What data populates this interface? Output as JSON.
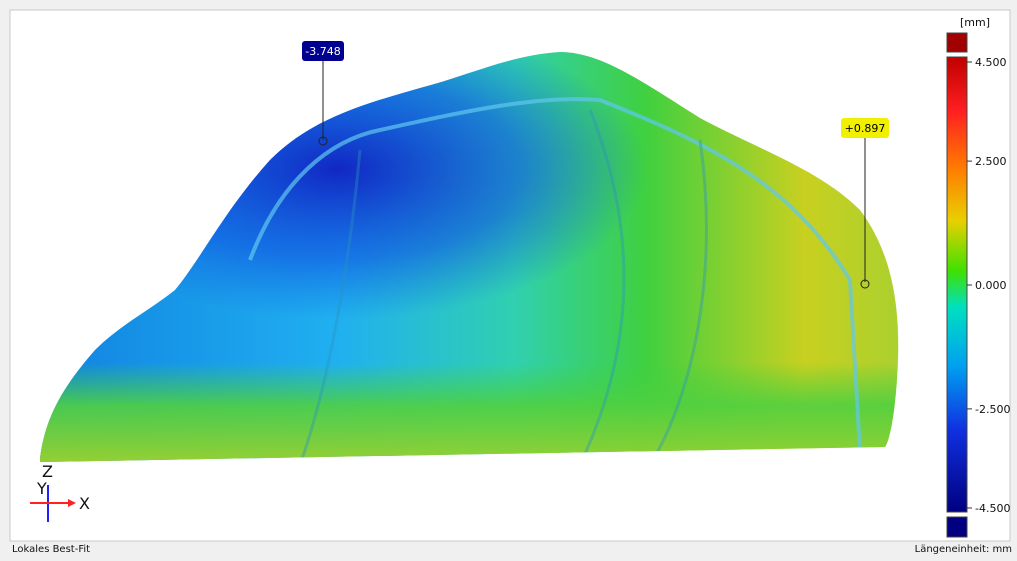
{
  "viewport": {
    "colorbar": {
      "unit": "[mm]",
      "ticks": [
        {
          "value": 4.5,
          "label": "4.500"
        },
        {
          "value": 2.5,
          "label": "2.500"
        },
        {
          "value": 0,
          "label": "0.000"
        },
        {
          "value": -2.5,
          "label": "-2.500"
        },
        {
          "value": -4.5,
          "label": "-4.500"
        }
      ]
    },
    "annotations": [
      {
        "value": -3.748,
        "label": "-3.748"
      },
      {
        "value": 0.897,
        "label": "+0.897"
      }
    ],
    "axes": {
      "z": "Z",
      "y": "Y",
      "x": "X"
    }
  },
  "status_bar": {
    "left": "Lokales Best-Fit",
    "right": "Längeneinheit: mm"
  }
}
